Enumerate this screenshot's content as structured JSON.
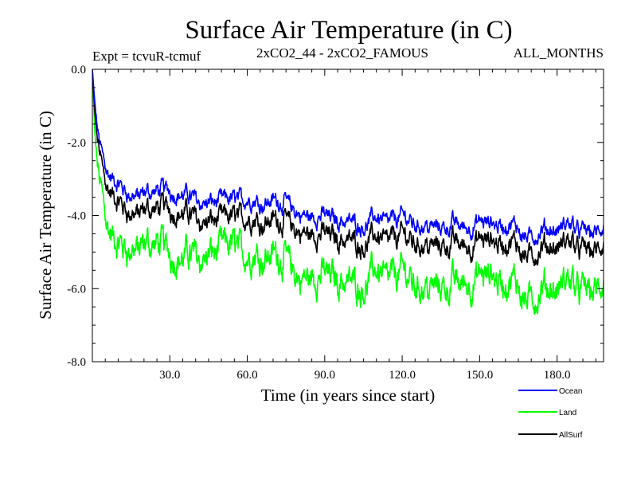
{
  "chart_data": {
    "type": "line",
    "title": "Surface Air Temperature (in C)",
    "subtitle_left": "Expt = tcvuR-tcmuf",
    "subtitle_center": "2xCO2_44 - 2xCO2_FAMOUS",
    "subtitle_right": "ALL_MONTHS",
    "xlabel": "Time (in years since start)",
    "ylabel": "Surface Air Temperature (in C)",
    "xlim": [
      0,
      198
    ],
    "ylim": [
      -8.0,
      0.0
    ],
    "xticks": [
      30,
      60,
      90,
      120,
      150,
      180
    ],
    "xtick_labels": [
      "30.0",
      "60.0",
      "90.0",
      "120.0",
      "150.0",
      "180.0"
    ],
    "yticks": [
      0,
      -2,
      -4,
      -6,
      -8
    ],
    "ytick_labels": [
      "0.0",
      "-2.0",
      "-4.0",
      "-6.0",
      "-8.0"
    ],
    "grid": false,
    "legend_position": "bottom-right, outside plot",
    "series": [
      {
        "name": "Ocean",
        "color": "#0000ff",
        "x": [
          0,
          1,
          2,
          3,
          4,
          5,
          7,
          10,
          13,
          15,
          20,
          25,
          30,
          35,
          40,
          45,
          50,
          55,
          60,
          65,
          70,
          75,
          80,
          85,
          90,
          95,
          100,
          105,
          110,
          115,
          120,
          125,
          130,
          135,
          140,
          145,
          150,
          155,
          160,
          165,
          170,
          175,
          180,
          185,
          190,
          195,
          198
        ],
        "y": [
          0.0,
          -1.0,
          -1.7,
          -2.1,
          -2.4,
          -2.6,
          -2.9,
          -3.2,
          -3.4,
          -3.5,
          -3.5,
          -3.4,
          -3.3,
          -3.4,
          -3.5,
          -3.6,
          -3.6,
          -3.6,
          -3.5,
          -3.6,
          -3.5,
          -3.6,
          -4.0,
          -4.1,
          -4.0,
          -4.1,
          -4.1,
          -4.2,
          -4.0,
          -4.1,
          -4.0,
          -4.2,
          -4.2,
          -4.3,
          -4.2,
          -4.3,
          -4.2,
          -4.3,
          -4.3,
          -4.4,
          -4.6,
          -4.5,
          -4.5,
          -4.3,
          -4.4,
          -4.5,
          -4.4
        ]
      },
      {
        "name": "Land",
        "color": "#00ff00",
        "x": [
          0,
          1,
          2,
          3,
          4,
          5,
          7,
          10,
          13,
          15,
          20,
          25,
          30,
          35,
          40,
          45,
          50,
          55,
          60,
          65,
          70,
          75,
          80,
          85,
          90,
          95,
          100,
          105,
          110,
          115,
          120,
          125,
          130,
          135,
          140,
          145,
          150,
          155,
          160,
          165,
          170,
          175,
          180,
          185,
          190,
          195,
          198
        ],
        "y": [
          0.0,
          -1.9,
          -2.7,
          -3.2,
          -3.6,
          -3.9,
          -4.4,
          -4.9,
          -5.0,
          -5.0,
          -5.0,
          -4.9,
          -5.0,
          -5.1,
          -5.0,
          -5.0,
          -4.9,
          -4.9,
          -5.0,
          -5.0,
          -4.9,
          -5.1,
          -5.8,
          -5.8,
          -5.6,
          -5.7,
          -5.7,
          -5.8,
          -5.4,
          -5.6,
          -5.5,
          -5.8,
          -5.8,
          -5.9,
          -5.8,
          -5.8,
          -5.7,
          -5.8,
          -5.9,
          -6.0,
          -6.3,
          -6.2,
          -6.2,
          -5.9,
          -6.0,
          -6.1,
          -6.0
        ]
      },
      {
        "name": "AllSurf",
        "color": "#000000",
        "x": [
          0,
          1,
          2,
          3,
          4,
          5,
          7,
          10,
          13,
          15,
          20,
          25,
          30,
          35,
          40,
          45,
          50,
          55,
          60,
          65,
          70,
          75,
          80,
          85,
          90,
          95,
          100,
          105,
          110,
          115,
          120,
          125,
          130,
          135,
          140,
          145,
          150,
          155,
          160,
          165,
          170,
          175,
          180,
          185,
          190,
          195,
          198
        ],
        "y": [
          0.0,
          -1.3,
          -2.0,
          -2.4,
          -2.8,
          -3.0,
          -3.3,
          -3.7,
          -3.9,
          -4.0,
          -4.0,
          -3.9,
          -3.8,
          -3.9,
          -4.0,
          -4.1,
          -4.1,
          -4.1,
          -4.0,
          -4.1,
          -4.0,
          -4.1,
          -4.5,
          -4.6,
          -4.5,
          -4.6,
          -4.6,
          -4.7,
          -4.5,
          -4.6,
          -4.5,
          -4.7,
          -4.7,
          -4.8,
          -4.7,
          -4.8,
          -4.7,
          -4.8,
          -4.8,
          -4.9,
          -5.1,
          -5.0,
          -5.0,
          -4.8,
          -4.9,
          -5.0,
          -4.9
        ]
      }
    ]
  },
  "legend": {
    "ocean": "Ocean",
    "land": "Land",
    "allsurf": "AllSurf"
  }
}
